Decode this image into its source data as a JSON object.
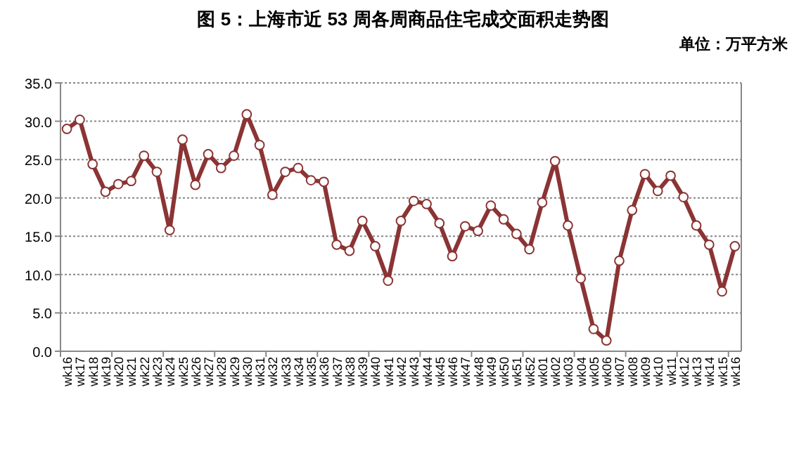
{
  "chart_data": {
    "type": "line",
    "title": "图 5：上海市近 53 周各周商品住宅成交面积走势图",
    "subtitle": "单位：万平方米",
    "categories": [
      "wk16",
      "wk17",
      "wk18",
      "wk19",
      "wk20",
      "wk21",
      "wk22",
      "wk23",
      "wk24",
      "wk25",
      "wk26",
      "wk27",
      "wk28",
      "wk29",
      "wk30",
      "wk31",
      "wk32",
      "wk33",
      "wk34",
      "wk35",
      "wk36",
      "wk37",
      "wk38",
      "wk39",
      "wk40",
      "wk41",
      "wk42",
      "wk43",
      "wk44",
      "wk45",
      "wk46",
      "wk47",
      "wk48",
      "wk49",
      "wk50",
      "wk51",
      "wk52",
      "wk01",
      "wk02",
      "wk03",
      "wk04",
      "wk05",
      "wk06",
      "wk07",
      "wk08",
      "wk09",
      "wk10",
      "wk11",
      "wk12",
      "wk13",
      "wk14",
      "wk15",
      "wk16"
    ],
    "series": [
      {
        "color": "#8b3434",
        "values": [
          29.0,
          30.2,
          24.4,
          20.8,
          21.8,
          22.2,
          25.5,
          23.4,
          15.8,
          27.6,
          21.7,
          25.7,
          23.9,
          25.5,
          30.9,
          26.9,
          20.4,
          23.4,
          23.9,
          22.3,
          22.1,
          13.9,
          13.1,
          17.0,
          13.7,
          9.2,
          17.0,
          19.6,
          19.2,
          16.7,
          12.4,
          16.3,
          15.7,
          19.0,
          17.2,
          15.3,
          13.3,
          19.4,
          24.8,
          16.4,
          9.5,
          2.9,
          1.4,
          11.8,
          18.4,
          23.1,
          20.9,
          22.9,
          20.1,
          16.4,
          13.9,
          7.8,
          13.7
        ]
      }
    ],
    "ylim": [
      0,
      35
    ],
    "yticks": [
      {
        "value": 0,
        "label": "0.0"
      },
      {
        "value": 5,
        "label": "5.0"
      },
      {
        "value": 10,
        "label": "10.0"
      },
      {
        "value": 15,
        "label": "15.0"
      },
      {
        "value": 20,
        "label": "20.0"
      },
      {
        "value": 25,
        "label": "25.0"
      },
      {
        "value": 30,
        "label": "30.0"
      },
      {
        "value": 35,
        "label": "35.0"
      }
    ],
    "grid": "y",
    "marker": "circle",
    "line_style": "solid"
  }
}
